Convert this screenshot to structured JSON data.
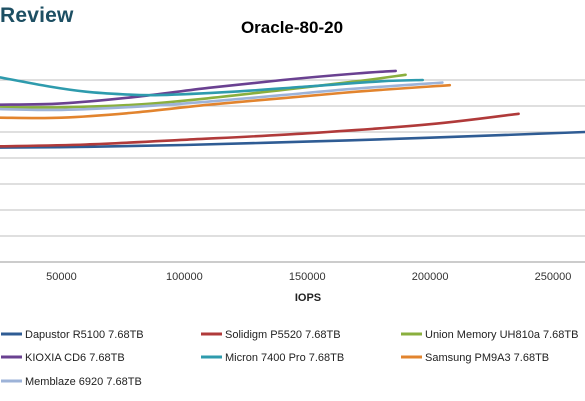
{
  "brand": {
    "text": "Review"
  },
  "chart_data": {
    "type": "line",
    "title": "Oracle-80-20",
    "xlabel": "IOPS",
    "ylabel": "",
    "xlim": [
      25000,
      263000
    ],
    "ylim": [
      0,
      8
    ],
    "x_ticks": [
      50000,
      100000,
      150000,
      200000,
      250000
    ],
    "x_tick_labels": [
      "50000",
      "100000",
      "150000",
      "200000",
      "250000"
    ],
    "y_gridlines": [
      1,
      2,
      3,
      4,
      5,
      6,
      7
    ],
    "grid": true,
    "legend_position": "bottom",
    "series": [
      {
        "name": "Dapustor R5100 7.68TB",
        "color": "#2f5c94",
        "x": [
          25000,
          60000,
          100000,
          150000,
          200000,
          263000
        ],
        "y": [
          4.4,
          4.43,
          4.5,
          4.63,
          4.78,
          5.0
        ]
      },
      {
        "name": "Solidigm P5520 7.68TB",
        "color": "#b03a3a",
        "x": [
          25000,
          60000,
          100000,
          150000,
          200000,
          236000
        ],
        "y": [
          4.45,
          4.52,
          4.7,
          4.95,
          5.3,
          5.7
        ]
      },
      {
        "name": "Union Memory UH810a 7.68TB",
        "color": "#8aaf3e",
        "x": [
          25000,
          50000,
          80000,
          110000,
          140000,
          170000,
          190000
        ],
        "y": [
          5.95,
          5.95,
          6.05,
          6.3,
          6.62,
          6.95,
          7.2
        ]
      },
      {
        "name": "KIOXIA CD6 7.68TB",
        "color": "#6a4191",
        "x": [
          25000,
          50000,
          80000,
          110000,
          140000,
          170000,
          186000
        ],
        "y": [
          6.05,
          6.1,
          6.35,
          6.7,
          7.0,
          7.25,
          7.35
        ]
      },
      {
        "name": "Micron 7400 Pro 7.68TB",
        "color": "#2e9bad",
        "x": [
          25000,
          45000,
          60000,
          75000,
          90000,
          120000,
          150000,
          180000,
          197000
        ],
        "y": [
          7.1,
          6.75,
          6.55,
          6.45,
          6.42,
          6.55,
          6.75,
          6.95,
          7.0
        ]
      },
      {
        "name": "Samsung PM9A3 7.68TB",
        "color": "#e2842e",
        "x": [
          25000,
          50000,
          80000,
          110000,
          140000,
          170000,
          200000,
          208000
        ],
        "y": [
          5.55,
          5.55,
          5.75,
          6.05,
          6.3,
          6.55,
          6.75,
          6.8
        ]
      },
      {
        "name": "Memblaze 6920 7.68TB",
        "color": "#9db3d8",
        "x": [
          25000,
          50000,
          80000,
          110000,
          140000,
          170000,
          200000,
          205000
        ],
        "y": [
          5.88,
          5.85,
          5.97,
          6.17,
          6.42,
          6.67,
          6.87,
          6.9
        ]
      }
    ]
  }
}
